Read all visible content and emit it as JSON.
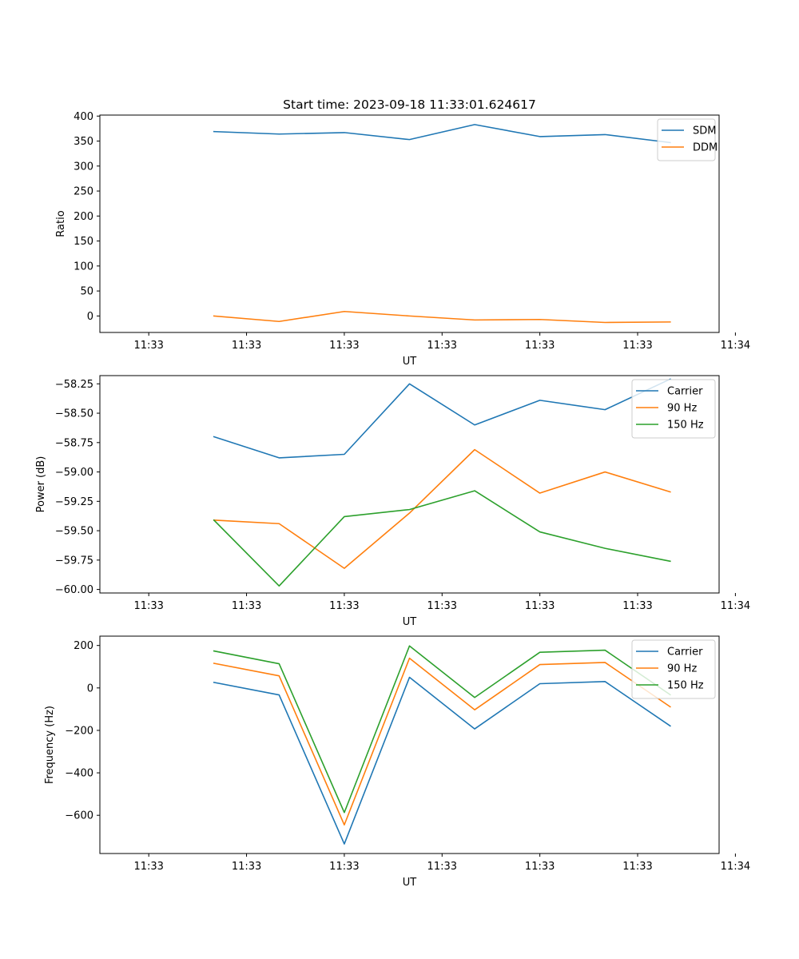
{
  "figure_title": "Start time: 2023-09-18 11:33:01.624617",
  "colors": {
    "blue": "#1f77b4",
    "orange": "#ff7f0e",
    "green": "#2ca02c"
  },
  "chart_data": [
    {
      "type": "line",
      "title": "Start time: 2023-09-18 11:33:01.624617",
      "xlabel": "UT",
      "ylabel": "Ratio",
      "x": [
        1,
        2,
        3,
        4,
        5,
        6,
        7,
        8
      ],
      "xlim": [
        -0.75,
        8.75
      ],
      "xticks": [
        0,
        1.5,
        3,
        4.5,
        6,
        7.5,
        9
      ],
      "xtick_labels": [
        "11:33",
        "11:33",
        "11:33",
        "11:33",
        "11:33",
        "11:33",
        "11:34"
      ],
      "ylim": [
        -33,
        402
      ],
      "yticks": [
        0,
        50,
        100,
        150,
        200,
        250,
        300,
        350,
        400
      ],
      "ytick_labels": [
        "0",
        "50",
        "100",
        "150",
        "200",
        "250",
        "300",
        "350",
        "400"
      ],
      "legend_position": "top-right",
      "series": [
        {
          "name": "SDM",
          "color": "#1f77b4",
          "values": [
            369,
            364,
            367,
            353,
            383,
            359,
            363,
            347
          ]
        },
        {
          "name": "DDM",
          "color": "#ff7f0e",
          "values": [
            0,
            -11,
            9,
            0,
            -8,
            -7,
            -13,
            -12
          ]
        }
      ]
    },
    {
      "type": "line",
      "title": "",
      "xlabel": "UT",
      "ylabel": "Power (dB)",
      "x": [
        1,
        2,
        3,
        4,
        5,
        6,
        7,
        8
      ],
      "xlim": [
        -0.75,
        8.75
      ],
      "xticks": [
        0,
        1.5,
        3,
        4.5,
        6,
        7.5,
        9
      ],
      "xtick_labels": [
        "11:33",
        "11:33",
        "11:33",
        "11:33",
        "11:33",
        "11:33",
        "11:34"
      ],
      "ylim": [
        -60.03,
        -58.18
      ],
      "yticks": [
        -60.0,
        -59.75,
        -59.5,
        -59.25,
        -59.0,
        -58.75,
        -58.5,
        -58.25
      ],
      "ytick_labels": [
        "−60.00",
        "−59.75",
        "−59.50",
        "−59.25",
        "−59.00",
        "−58.75",
        "−58.50",
        "−58.25"
      ],
      "legend_position": "top-right",
      "series": [
        {
          "name": "Carrier",
          "color": "#1f77b4",
          "values": [
            -58.7,
            -58.88,
            -58.85,
            -58.25,
            -58.6,
            -58.39,
            -58.47,
            -58.21
          ]
        },
        {
          "name": "90 Hz",
          "color": "#ff7f0e",
          "values": [
            -59.41,
            -59.44,
            -59.82,
            -59.35,
            -58.81,
            -59.18,
            -59.0,
            -59.17
          ]
        },
        {
          "name": "150 Hz",
          "color": "#2ca02c",
          "values": [
            -59.41,
            -59.97,
            -59.38,
            -59.32,
            -59.16,
            -59.51,
            -59.65,
            -59.76
          ]
        }
      ]
    },
    {
      "type": "line",
      "title": "",
      "xlabel": "UT",
      "ylabel": "Frequency (Hz)",
      "x": [
        1,
        2,
        3,
        4,
        5,
        6,
        7,
        8
      ],
      "xlim": [
        -0.75,
        8.75
      ],
      "xticks": [
        0,
        1.5,
        3,
        4.5,
        6,
        7.5,
        9
      ],
      "xtick_labels": [
        "11:33",
        "11:33",
        "11:33",
        "11:33",
        "11:33",
        "11:33",
        "11:34"
      ],
      "ylim": [
        -780,
        244
      ],
      "yticks": [
        -600,
        -400,
        -200,
        0,
        200
      ],
      "ytick_labels": [
        "−600",
        "−400",
        "−200",
        "0",
        "200"
      ],
      "legend_position": "top-right",
      "series": [
        {
          "name": "Carrier",
          "color": "#1f77b4",
          "values": [
            26,
            -33,
            -735,
            50,
            -193,
            20,
            30,
            -179
          ]
        },
        {
          "name": "90 Hz",
          "color": "#ff7f0e",
          "values": [
            116,
            57,
            -645,
            140,
            -103,
            110,
            120,
            -89
          ]
        },
        {
          "name": "150 Hz",
          "color": "#2ca02c",
          "values": [
            174,
            114,
            -587,
            198,
            -45,
            168,
            178,
            -32
          ]
        }
      ]
    }
  ]
}
